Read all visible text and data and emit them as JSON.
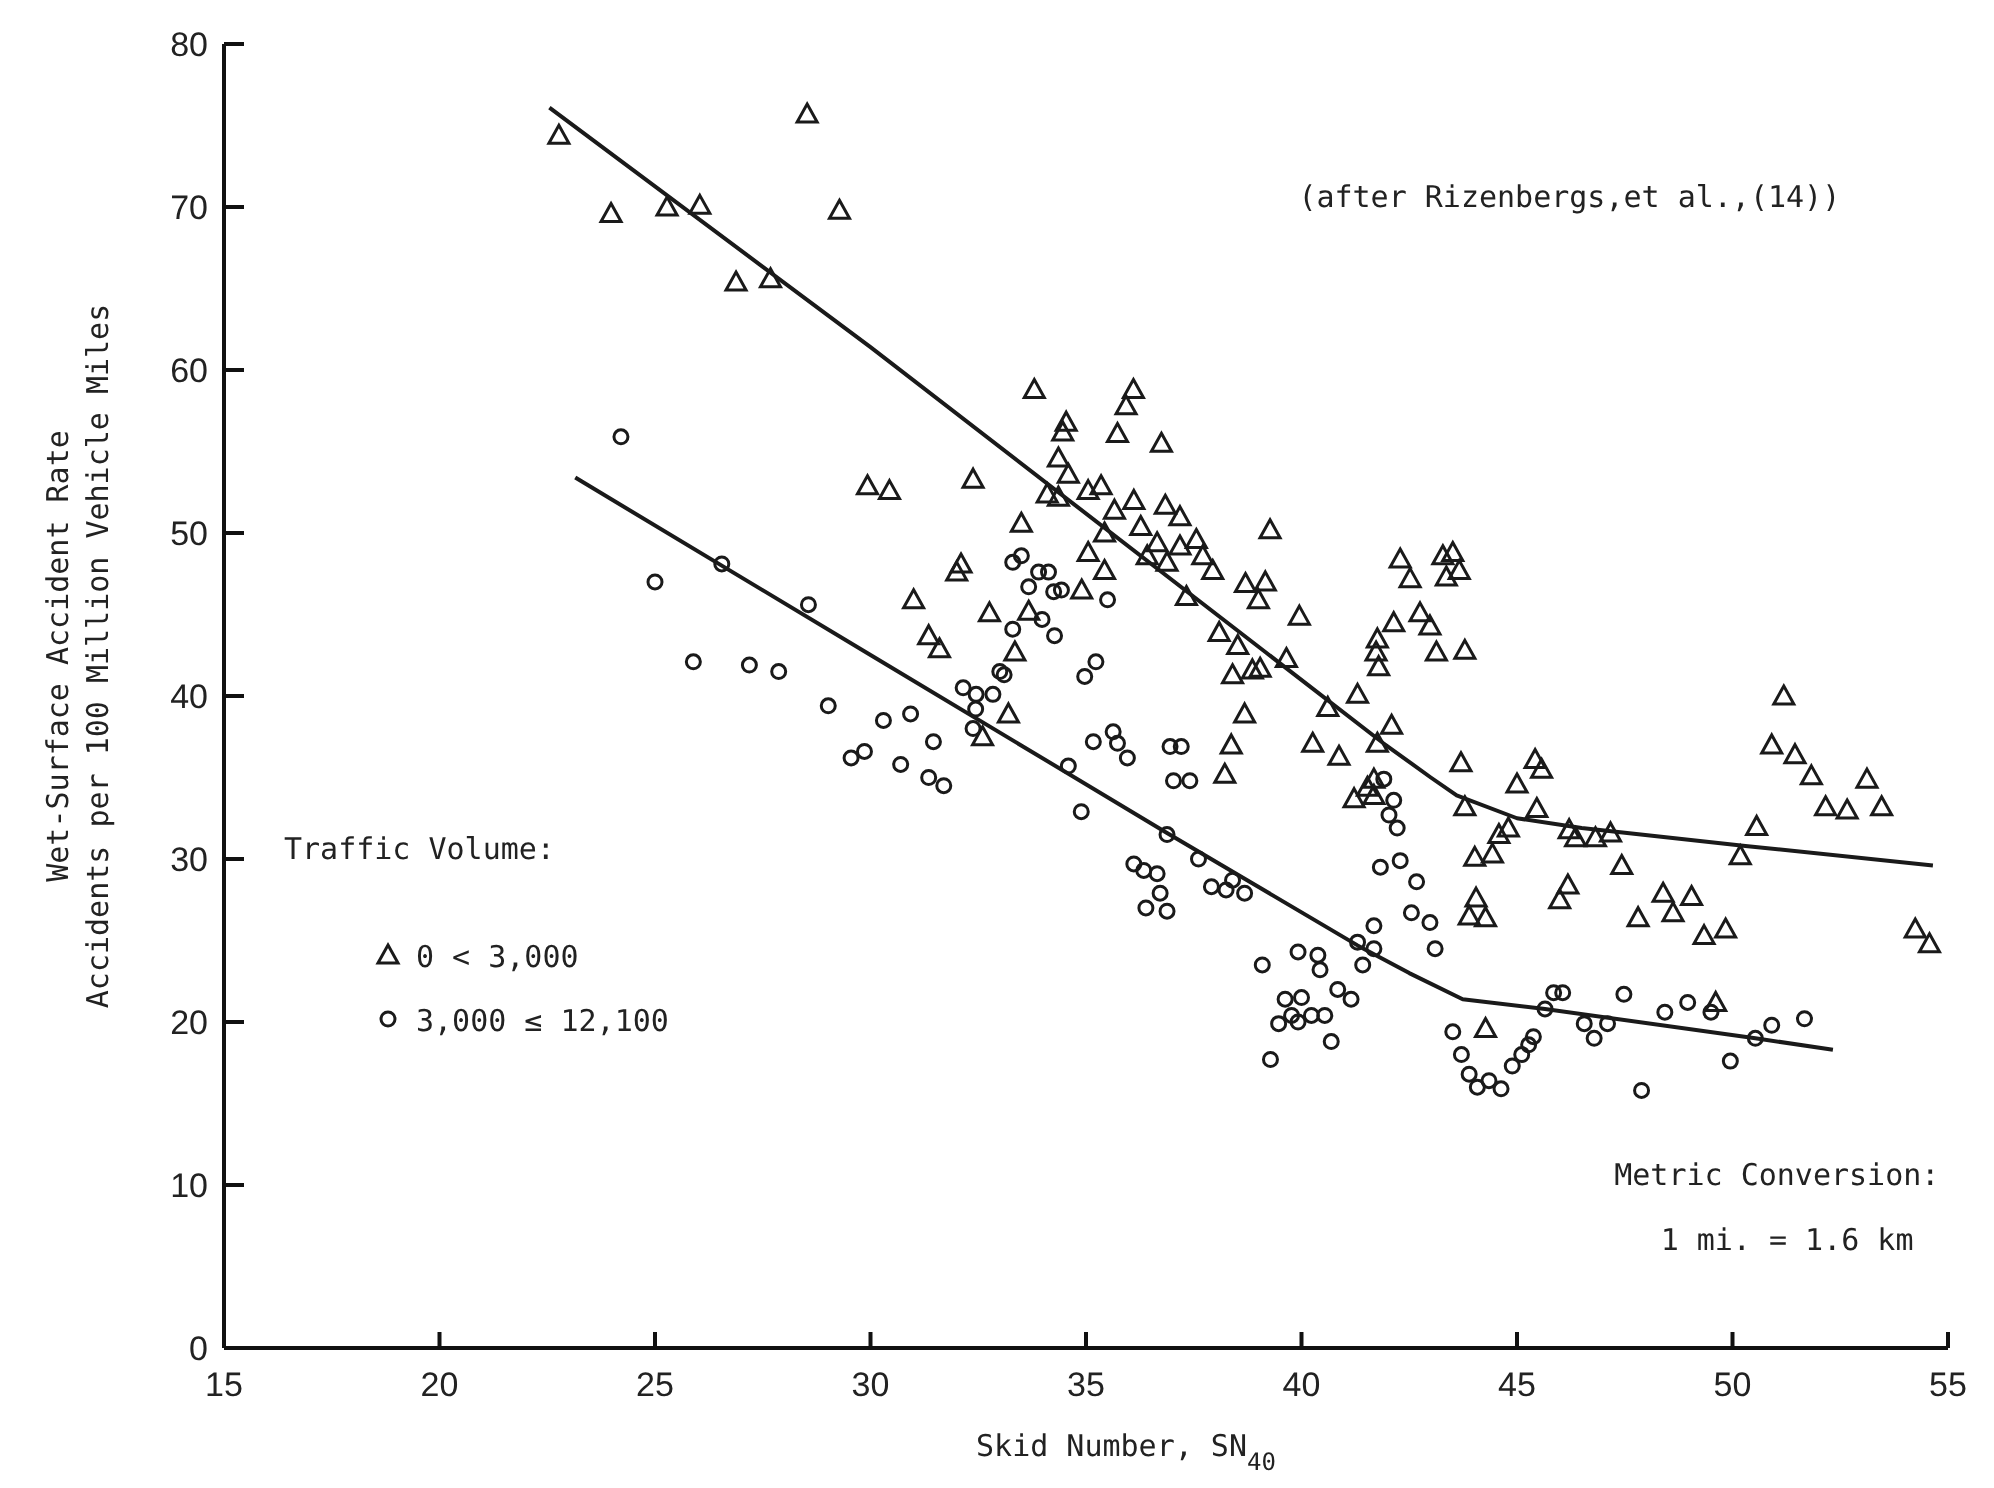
{
  "chart_data": {
    "type": "scatter",
    "xlabel": "Skid Number, SN$_{40}$",
    "ylabel": "Wet-Surface Accident Rate\nAccidents per 100 Million Vehicle Miles",
    "legend_title": "Traffic Volume:",
    "legend": "left",
    "xlim": [
      15,
      55
    ],
    "xticks": [
      15,
      20,
      25,
      30,
      35,
      40,
      45,
      50,
      55
    ],
    "ylim": [
      0,
      80
    ],
    "yticks": [
      0,
      10,
      20,
      30,
      40,
      50,
      60,
      70,
      80
    ],
    "annotations": [
      "(after Rizenbergs,et al.,(14))",
      "Metric Conversion:",
      "1 mi. = 1.6 km"
    ],
    "series": [
      {
        "name": "0 < 3,000",
        "color": "#1a1a1a",
        "marker": "triangle",
        "x": [
          22.77,
          23.98,
          25.28,
          26.04,
          26.88,
          27.68,
          28.53,
          29.28,
          33.8,
          29.93,
          30.44,
          32.38,
          33.5,
          32.1,
          32.0,
          31.0,
          32.76,
          31.35,
          31.6,
          33.35,
          33.67,
          33.2,
          32.6,
          36.1,
          35.93,
          34.54,
          34.46,
          35.73,
          36.75,
          34.36,
          34.59,
          34.1,
          34.36,
          35.05,
          35.35,
          35.66,
          36.11,
          36.84,
          37.18,
          35.43,
          36.27,
          36.65,
          37.18,
          37.56,
          37.71,
          37.94,
          39.27,
          35.05,
          35.43,
          36.42,
          36.88,
          34.9,
          37.33,
          38.7,
          39.16,
          39.0,
          39.95,
          38.09,
          38.52,
          38.4,
          38.86,
          39.04,
          39.65,
          38.68,
          38.37,
          38.22,
          40.26,
          40.87,
          40.61,
          41.3,
          42.09,
          41.76,
          41.68,
          41.53,
          41.22,
          41.68,
          42.29,
          42.52,
          43.28,
          43.51,
          43.36,
          42.75,
          42.98,
          41.76,
          41.73,
          41.79,
          43.13,
          43.7,
          43.66,
          42.14,
          43.79,
          43.79,
          45.42,
          45.57,
          45.0,
          45.46,
          44.8,
          44.58,
          46.21,
          46.36,
          46.82,
          47.17,
          44.02,
          44.43,
          47.43,
          44.05,
          43.89,
          44.27,
          46.18,
          45.99,
          47.81,
          48.39,
          48.62,
          49.05,
          49.34,
          49.84,
          50.56,
          50.18,
          51.19,
          50.91,
          51.45,
          51.83,
          52.16,
          52.66,
          53.12,
          53.46,
          54.24,
          54.57,
          49.61,
          44.27
        ],
        "values": [
          74.4,
          69.6,
          70.0,
          70.1,
          65.4,
          65.6,
          75.7,
          69.8,
          58.8,
          52.9,
          52.6,
          53.3,
          50.6,
          48.1,
          47.6,
          45.9,
          45.1,
          43.7,
          42.9,
          42.7,
          45.2,
          38.9,
          37.5,
          58.8,
          57.8,
          56.8,
          56.2,
          56.1,
          55.5,
          54.6,
          53.6,
          52.4,
          52.2,
          52.6,
          52.9,
          51.4,
          52.0,
          51.7,
          51.0,
          50.0,
          50.4,
          49.4,
          49.2,
          49.6,
          48.6,
          47.7,
          50.2,
          48.8,
          47.7,
          48.6,
          48.2,
          46.5,
          46.1,
          46.9,
          47.0,
          45.9,
          44.9,
          43.9,
          43.1,
          41.3,
          41.6,
          41.7,
          42.3,
          38.9,
          37.0,
          35.2,
          37.1,
          36.3,
          39.3,
          40.1,
          38.2,
          37.1,
          34.9,
          34.4,
          33.7,
          33.9,
          48.4,
          47.2,
          48.6,
          48.8,
          47.3,
          45.1,
          44.3,
          43.5,
          42.7,
          41.8,
          42.7,
          35.9,
          47.7,
          44.5,
          42.8,
          33.2,
          36.1,
          35.5,
          34.6,
          33.1,
          31.9,
          31.5,
          31.8,
          31.3,
          31.3,
          31.6,
          30.1,
          30.3,
          29.6,
          27.6,
          26.5,
          26.4,
          28.4,
          27.5,
          26.4,
          27.9,
          26.7,
          27.7,
          25.3,
          25.7,
          32.0,
          30.2,
          40.0,
          37.0,
          36.4,
          35.1,
          33.2,
          33.0,
          34.9,
          33.2,
          25.7,
          24.8,
          21.2,
          19.6
        ]
      },
      {
        "name": "3,000 ≤ 12,100",
        "color": "#1a1a1a",
        "marker": "circle",
        "x": [
          24.21,
          26.55,
          25.0,
          28.56,
          25.89,
          27.19,
          27.87,
          29.02,
          30.3,
          30.93,
          31.46,
          29.55,
          29.86,
          30.7,
          31.35,
          31.7,
          32.15,
          32.45,
          32.84,
          32.44,
          32.38,
          33.0,
          33.1,
          33.3,
          33.3,
          33.5,
          33.67,
          33.9,
          34.13,
          34.25,
          34.43,
          34.27,
          33.98,
          35.5,
          34.97,
          35.23,
          34.59,
          35.17,
          35.63,
          35.73,
          35.96,
          34.89,
          36.95,
          37.21,
          37.03,
          37.41,
          36.88,
          36.11,
          36.34,
          36.65,
          36.72,
          36.39,
          36.88,
          37.61,
          37.91,
          38.25,
          38.4,
          38.68,
          39.09,
          39.28,
          39.62,
          40.0,
          39.47,
          39.77,
          39.92,
          40.23,
          40.54,
          39.92,
          40.38,
          40.43,
          40.69,
          40.84,
          41.15,
          41.3,
          41.68,
          41.42,
          41.68,
          41.83,
          41.91,
          42.14,
          42.22,
          42.03,
          42.29,
          42.67,
          42.55,
          42.98,
          43.1,
          43.51,
          43.71,
          43.89,
          44.08,
          44.35,
          44.63,
          44.89,
          45.11,
          45.27,
          45.38,
          45.65,
          45.85,
          46.06,
          46.56,
          46.79,
          47.1,
          47.48,
          47.89,
          48.43,
          48.96,
          49.5,
          49.95,
          50.53,
          50.91,
          51.67
        ],
        "values": [
          55.9,
          48.1,
          47.0,
          45.6,
          42.1,
          41.9,
          41.5,
          39.4,
          38.5,
          38.9,
          37.2,
          36.2,
          36.6,
          35.8,
          35.0,
          34.5,
          40.5,
          40.1,
          40.1,
          39.2,
          38.0,
          41.5,
          41.3,
          44.1,
          48.2,
          48.6,
          46.7,
          47.6,
          47.6,
          46.4,
          46.5,
          43.7,
          44.7,
          45.9,
          41.2,
          42.1,
          35.7,
          37.2,
          37.8,
          37.1,
          36.2,
          32.9,
          36.9,
          36.9,
          34.8,
          34.8,
          31.5,
          29.7,
          29.3,
          29.1,
          27.9,
          27.0,
          26.8,
          30.0,
          28.3,
          28.1,
          28.7,
          27.9,
          23.5,
          17.7,
          21.4,
          21.5,
          19.9,
          20.4,
          20.0,
          20.4,
          20.4,
          24.3,
          24.1,
          23.2,
          18.8,
          22.0,
          21.4,
          24.9,
          24.5,
          23.5,
          25.9,
          29.5,
          34.9,
          33.6,
          31.9,
          32.7,
          29.9,
          28.6,
          26.7,
          26.1,
          24.5,
          19.4,
          18.0,
          16.8,
          16.0,
          16.4,
          15.9,
          17.3,
          18.0,
          18.6,
          19.1,
          20.8,
          21.8,
          21.8,
          19.9,
          19.0,
          19.9,
          21.7,
          15.8,
          20.6,
          21.2,
          20.6,
          17.6,
          19.0,
          19.8,
          20.2
        ]
      },
      {
        "type": "line",
        "color": "#1a1a1a",
        "x": [
          22.55,
          30.0,
          39.16,
          41.9,
          43.0,
          43.6,
          45.0,
          46.5,
          50.3,
          54.65
        ],
        "values": [
          76.1,
          61.4,
          42.7,
          37.1,
          35.0,
          33.9,
          32.5,
          31.9,
          30.8,
          29.6
        ]
      },
      {
        "type": "line",
        "color": "#1a1a1a",
        "x": [
          23.15,
          30.01,
          36.88,
          41.3,
          42.5,
          43.74,
          45.65,
          50.53,
          52.33
        ],
        "values": [
          53.4,
          42.5,
          31.6,
          24.7,
          23.0,
          21.4,
          20.8,
          19.0,
          18.3
        ]
      }
    ]
  }
}
